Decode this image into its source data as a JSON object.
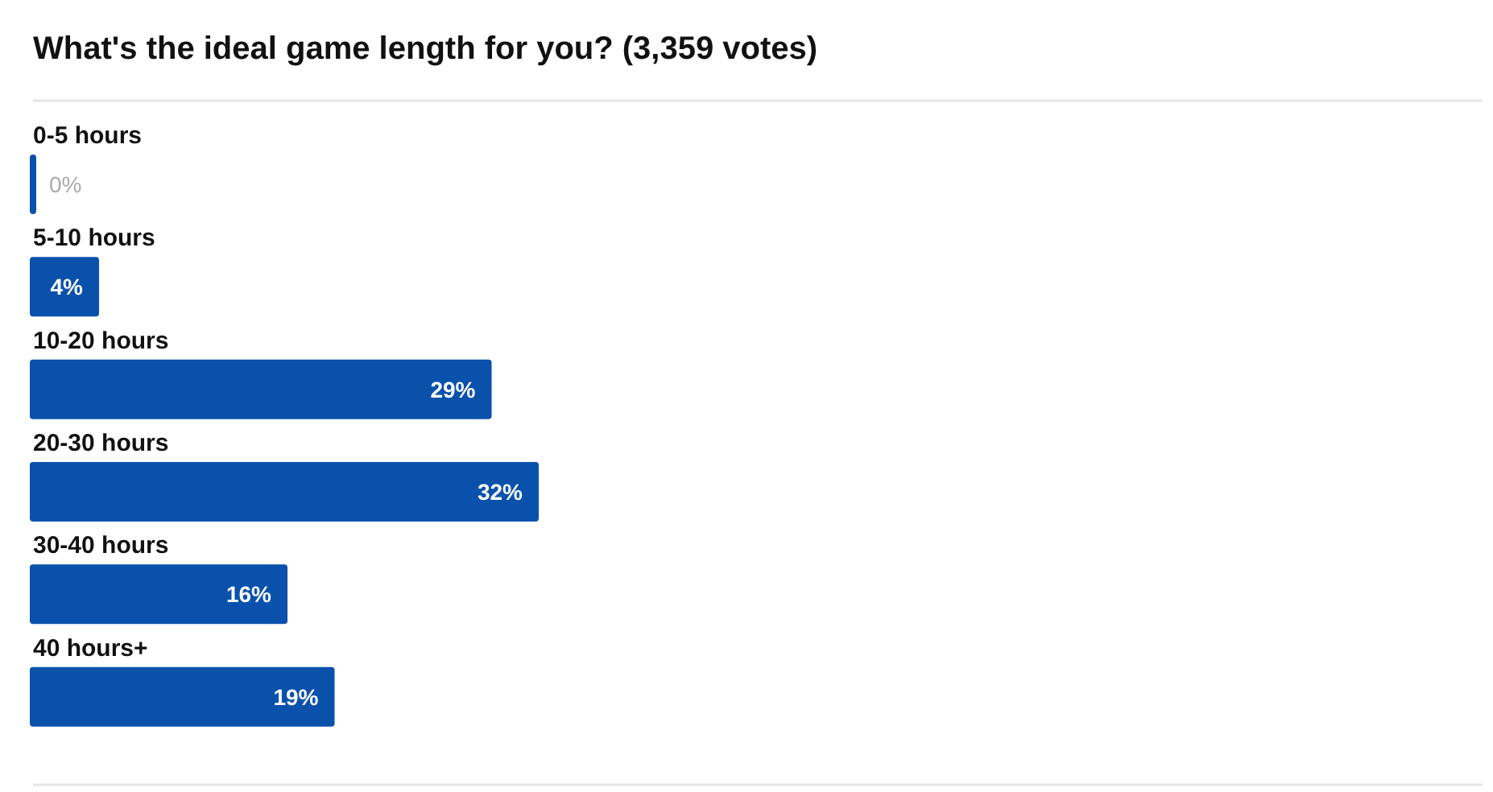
{
  "chart_data": {
    "type": "bar",
    "orientation": "horizontal",
    "title": "What's the ideal game length for you? (3,359 votes)",
    "categories": [
      "0-5 hours",
      "5-10 hours",
      "10-20 hours",
      "20-30 hours",
      "30-40 hours",
      "40 hours+"
    ],
    "values": [
      0,
      4,
      29,
      32,
      16,
      19
    ],
    "color": "#0a51ab",
    "value_labels": [
      "0%",
      "4%",
      "29%",
      "32%",
      "16%",
      "19%"
    ]
  }
}
